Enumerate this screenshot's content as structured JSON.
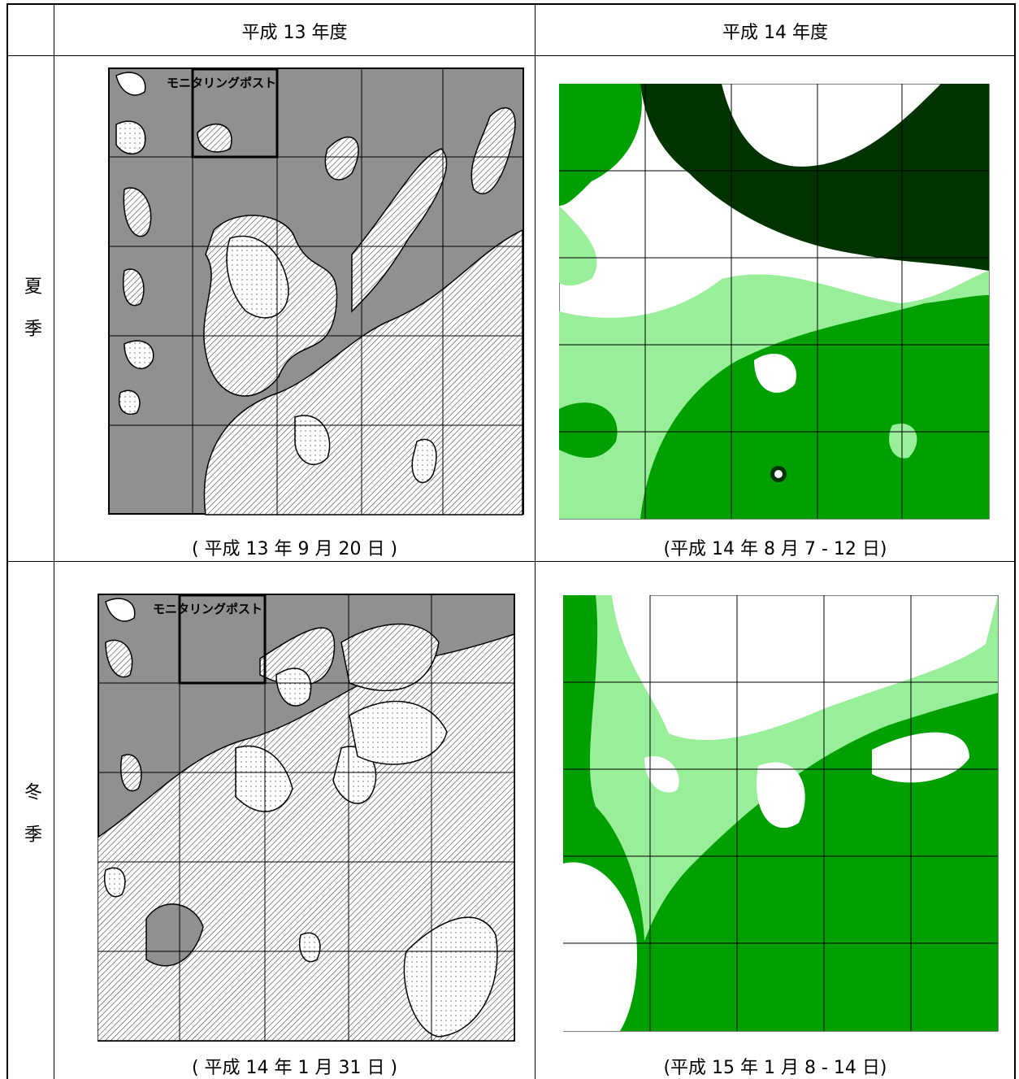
{
  "header": {
    "col1": "平成 13 年度",
    "col2": "平成 14 年度"
  },
  "rows": [
    {
      "season": "夏季",
      "map_label": "モニタリングポスト",
      "caption1": "( 平成 13 年 9 月 20 日 )",
      "caption2": "(平成 14 年 8 月 7 - 12 日)"
    },
    {
      "season": "冬季",
      "map_label": "モニタリングポスト",
      "caption1": "( 平成 14 年 1 月 31 日 )",
      "caption2": "(平成 15 年 1 月 8 - 14 日)"
    }
  ]
}
